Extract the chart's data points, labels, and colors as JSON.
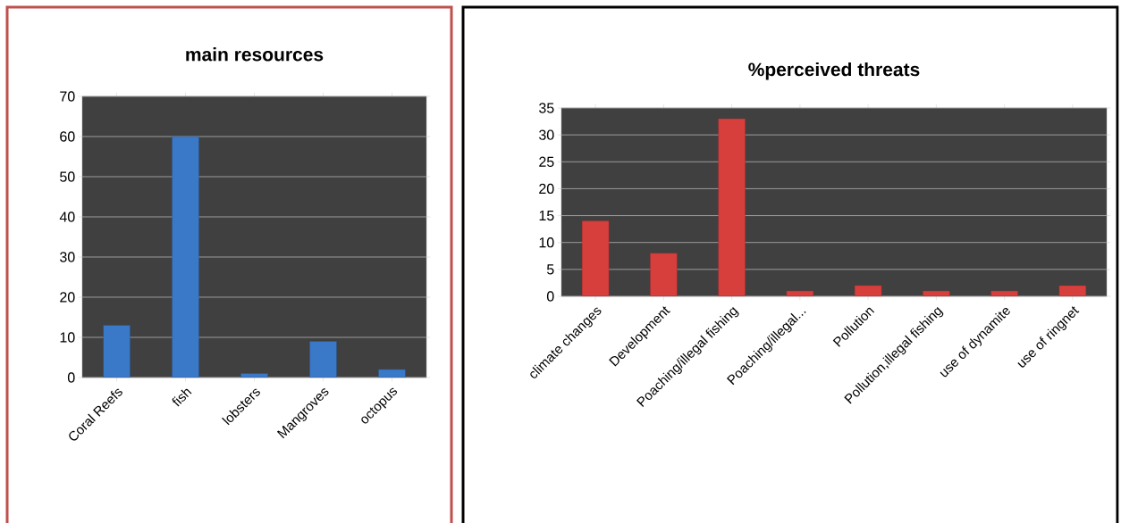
{
  "chart_data": [
    {
      "type": "bar",
      "title": "main resources",
      "categories": [
        "Coral Reefs",
        "fish",
        "lobsters",
        "Mangroves",
        "octopus"
      ],
      "values": [
        13,
        60,
        1,
        9,
        2
      ],
      "color": "#3a78c8",
      "ylim": [
        0,
        70
      ],
      "yticks": [
        0,
        10,
        20,
        30,
        40,
        50,
        60,
        70
      ],
      "grid": "y"
    },
    {
      "type": "bar",
      "title": "%perceived threats",
      "categories": [
        "climate changes",
        "Development",
        "Poaching/illegal fishing",
        "Poaching/illegal...",
        "Pollution",
        "Pollution,illegal fishing",
        "use of dynamite",
        "use of ringnet"
      ],
      "values": [
        14,
        8,
        33,
        1,
        2,
        1,
        1,
        2
      ],
      "color": "#d63f3c",
      "ylim": [
        0,
        35
      ],
      "yticks": [
        0,
        5,
        10,
        15,
        20,
        25,
        30,
        35
      ],
      "grid": "y"
    }
  ]
}
